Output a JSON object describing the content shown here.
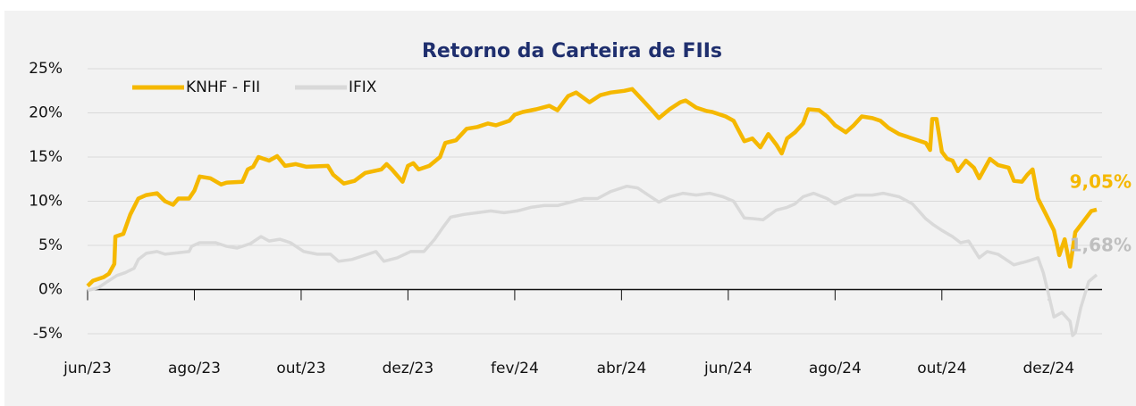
{
  "chart_data": {
    "type": "line",
    "title": "Retorno da Carteira de FIIs",
    "legend": "top-left",
    "grid": true,
    "xlim": [
      0,
      19
    ],
    "ylim": [
      -5,
      25
    ],
    "xticks": [
      {
        "value": 0,
        "label": "jun/23"
      },
      {
        "value": 2,
        "label": "ago/23"
      },
      {
        "value": 4,
        "label": "out/23"
      },
      {
        "value": 6,
        "label": "dez/23"
      },
      {
        "value": 8,
        "label": "fev/24"
      },
      {
        "value": 10,
        "label": "abr/24"
      },
      {
        "value": 12,
        "label": "jun/24"
      },
      {
        "value": 14,
        "label": "ago/24"
      },
      {
        "value": 16,
        "label": "out/24"
      },
      {
        "value": 18,
        "label": "dez/24"
      }
    ],
    "yticks": [
      {
        "value": -5,
        "label": "-5%"
      },
      {
        "value": 0,
        "label": "0%"
      },
      {
        "value": 5,
        "label": "5%"
      },
      {
        "value": 10,
        "label": "10%"
      },
      {
        "value": 15,
        "label": "15%"
      },
      {
        "value": 20,
        "label": "20%"
      },
      {
        "value": 25,
        "label": "25%"
      }
    ],
    "series": [
      {
        "name": "KNHF - FII",
        "color": "#f5b800",
        "end_label": "9,05%",
        "x": [
          0,
          0.1,
          0.3,
          0.4,
          0.5,
          0.52,
          0.67,
          0.8,
          0.95,
          1.1,
          1.3,
          1.45,
          1.6,
          1.7,
          1.9,
          2,
          2.1,
          2.3,
          2.5,
          2.6,
          2.9,
          3,
          3.1,
          3.2,
          3.4,
          3.55,
          3.7,
          3.9,
          4.1,
          4.5,
          4.6,
          4.8,
          5,
          5.2,
          5.5,
          5.6,
          5.7,
          5.9,
          6,
          6.1,
          6.2,
          6.4,
          6.6,
          6.7,
          6.9,
          7.1,
          7.3,
          7.5,
          7.65,
          7.9,
          8,
          8.15,
          8.4,
          8.65,
          8.8,
          9,
          9.15,
          9.4,
          9.6,
          9.8,
          10.05,
          10.2,
          10.4,
          10.6,
          10.7,
          10.9,
          11.1,
          11.2,
          11.4,
          11.6,
          11.7,
          11.95,
          12.1,
          12.3,
          12.45,
          12.6,
          12.75,
          12.9,
          13,
          13.1,
          13.25,
          13.4,
          13.5,
          13.7,
          13.85,
          14,
          14.2,
          14.35,
          14.5,
          14.7,
          14.85,
          15,
          15.2,
          15.45,
          15.7,
          15.78,
          15.82,
          15.9,
          16,
          16.1,
          16.2,
          16.3,
          16.45,
          16.6,
          16.7,
          16.9,
          17.05,
          17.25,
          17.35,
          17.5,
          17.6,
          17.7,
          17.8,
          17.95,
          18.1,
          18.2,
          18.3,
          18.4,
          18.5,
          18.65,
          18.8,
          18.9
        ],
        "values": [
          0.4,
          1,
          1.4,
          1.8,
          2.9,
          6,
          6.3,
          8.5,
          10.3,
          10.7,
          10.9,
          10,
          9.6,
          10.3,
          10.3,
          11.2,
          12.8,
          12.6,
          11.9,
          12.1,
          12.2,
          13.6,
          13.9,
          15,
          14.6,
          15.1,
          14,
          14.2,
          13.9,
          14,
          13,
          12,
          12.3,
          13.2,
          13.6,
          14.2,
          13.6,
          12.2,
          14,
          14.3,
          13.6,
          14,
          15,
          16.6,
          16.9,
          18.2,
          18.4,
          18.8,
          18.6,
          19.1,
          19.8,
          20.1,
          20.4,
          20.8,
          20.3,
          21.9,
          22.3,
          21.2,
          22,
          22.3,
          22.5,
          22.7,
          21.4,
          20.1,
          19.4,
          20.4,
          21.2,
          21.4,
          20.6,
          20.2,
          20.1,
          19.6,
          19.1,
          16.8,
          17.1,
          16.1,
          17.6,
          16.4,
          15.4,
          17.1,
          17.8,
          18.8,
          20.4,
          20.3,
          19.6,
          18.6,
          17.8,
          18.6,
          19.6,
          19.4,
          19.1,
          18.3,
          17.6,
          17.1,
          16.6,
          15.8,
          19.3,
          19.3,
          15.6,
          14.8,
          14.6,
          13.4,
          14.6,
          13.8,
          12.6,
          14.8,
          14.1,
          13.8,
          12.3,
          12.2,
          13,
          13.6,
          10.3,
          8.5,
          6.7,
          3.9,
          5.7,
          2.6,
          6.5,
          7.7,
          8.9,
          9.05
        ]
      },
      {
        "name": "IFIX",
        "color": "#d9d9d9",
        "end_label": "1,68%",
        "x": [
          0,
          0.2,
          0.37,
          0.55,
          0.7,
          0.87,
          0.95,
          1.1,
          1.3,
          1.45,
          1.6,
          1.9,
          1.95,
          2.1,
          2.4,
          2.6,
          2.8,
          3.05,
          3.25,
          3.4,
          3.6,
          3.8,
          4.05,
          4.3,
          4.55,
          4.7,
          4.95,
          5.2,
          5.4,
          5.55,
          5.8,
          6.05,
          6.3,
          6.5,
          6.65,
          6.8,
          7.05,
          7.3,
          7.55,
          7.8,
          8.05,
          8.3,
          8.55,
          8.8,
          9.05,
          9.3,
          9.55,
          9.8,
          10.1,
          10.3,
          10.5,
          10.7,
          10.9,
          11.15,
          11.4,
          11.65,
          11.9,
          12.1,
          12.3,
          12.5,
          12.65,
          12.9,
          13.1,
          13.25,
          13.4,
          13.6,
          13.85,
          14,
          14.2,
          14.4,
          14.7,
          14.9,
          15.2,
          15.45,
          15.7,
          15.85,
          16,
          16.2,
          16.35,
          16.5,
          16.7,
          16.85,
          17.05,
          17.2,
          17.35,
          17.6,
          17.8,
          17.9,
          18,
          18.1,
          18.25,
          18.4,
          18.45,
          18.5,
          18.6,
          18.75,
          18.9
        ],
        "values": [
          -0.1,
          0.2,
          0.9,
          1.6,
          1.9,
          2.4,
          3.4,
          4.1,
          4.3,
          4,
          4.1,
          4.3,
          4.9,
          5.3,
          5.3,
          4.9,
          4.7,
          5.2,
          6,
          5.5,
          5.7,
          5.3,
          4.3,
          4,
          4,
          3.2,
          3.4,
          3.9,
          4.3,
          3.2,
          3.6,
          4.3,
          4.3,
          5.7,
          7,
          8.2,
          8.5,
          8.7,
          8.9,
          8.7,
          8.9,
          9.3,
          9.5,
          9.5,
          9.9,
          10.3,
          10.3,
          11.1,
          11.7,
          11.5,
          10.7,
          9.9,
          10.5,
          10.9,
          10.7,
          10.9,
          10.5,
          10,
          8.1,
          8,
          7.9,
          9,
          9.3,
          9.7,
          10.5,
          10.9,
          10.3,
          9.7,
          10.3,
          10.7,
          10.7,
          10.9,
          10.5,
          9.7,
          8,
          7.3,
          6.7,
          6,
          5.3,
          5.5,
          3.6,
          4.3,
          4,
          3.4,
          2.8,
          3.2,
          3.6,
          1.9,
          -0.6,
          -3.1,
          -2.6,
          -3.6,
          -5.2,
          -4.9,
          -2.1,
          0.9,
          1.68
        ]
      }
    ]
  }
}
